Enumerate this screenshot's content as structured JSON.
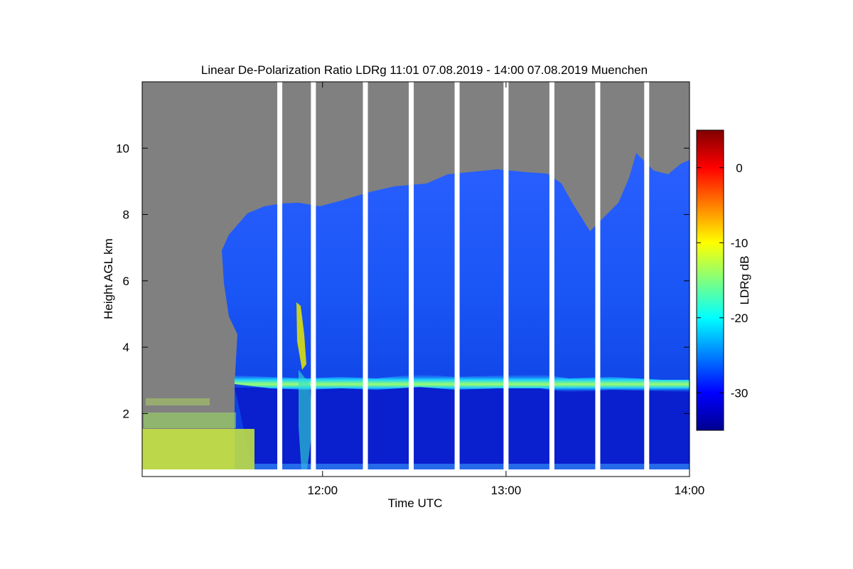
{
  "chart_data": {
    "type": "heatmap",
    "title": "Linear De-Polarization Ratio LDRg   11:01 07.08.2019 - 14:00 07.08.2019 Muenchen",
    "xlabel": "Time UTC",
    "ylabel": "Height AGL km",
    "colorbar_label": "LDRg dB",
    "x_range": [
      "11:01",
      "14:00"
    ],
    "x_ticks": [
      "12:00",
      "13:00",
      "14:00"
    ],
    "ylim": [
      0.1,
      12.0
    ],
    "y_ticks": [
      2,
      4,
      6,
      8,
      10
    ],
    "colorbar_range": [
      -35,
      5
    ],
    "colorbar_ticks": [
      0,
      -10,
      -20,
      -30
    ],
    "colormap": "jet",
    "background_color": "#808080",
    "gap_color": "#ffffff",
    "data_gaps_utc": [
      "11:46",
      "11:57",
      "12:14",
      "12:29",
      "12:44",
      "13:00",
      "13:15",
      "13:30",
      "13:46"
    ],
    "features": {
      "melting_layer_height_km": 2.95,
      "melting_layer_ldr_db": -20,
      "cloud_top_km_range": [
        7.5,
        9.8
      ],
      "ice_cloud_ldr_db": -30,
      "below_layer_ldr_db": -34,
      "clear_air_onset_utc": "11:33",
      "near_surface_noise_ldr_db": -15
    }
  }
}
